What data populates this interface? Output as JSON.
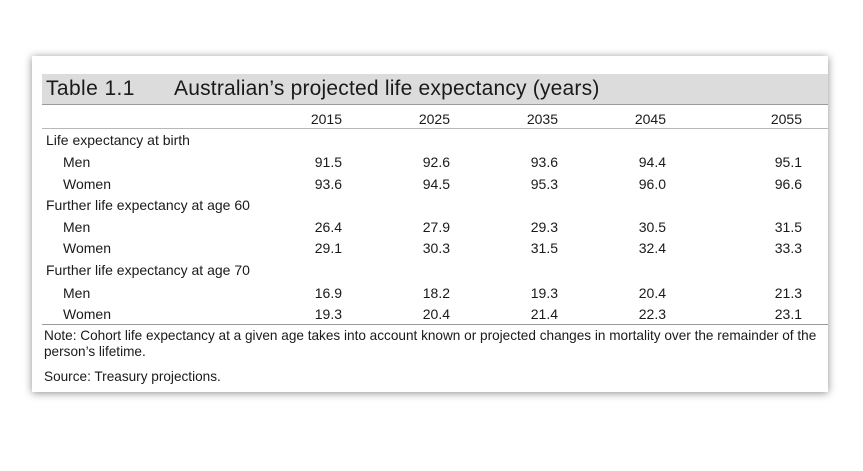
{
  "table": {
    "number": "Table 1.1",
    "title": "Australian’s projected life expectancy (years)",
    "years": [
      "2015",
      "2025",
      "2035",
      "2045",
      "2055"
    ],
    "sections": [
      {
        "heading": "Life expectancy at birth",
        "rows": [
          {
            "label": "Men",
            "values": [
              "91.5",
              "92.6",
              "93.6",
              "94.4",
              "95.1"
            ]
          },
          {
            "label": "Women",
            "values": [
              "93.6",
              "94.5",
              "95.3",
              "96.0",
              "96.6"
            ]
          }
        ]
      },
      {
        "heading": "Further life expectancy at age 60",
        "rows": [
          {
            "label": "Men",
            "values": [
              "26.4",
              "27.9",
              "29.3",
              "30.5",
              "31.5"
            ]
          },
          {
            "label": "Women",
            "values": [
              "29.1",
              "30.3",
              "31.5",
              "32.4",
              "33.3"
            ]
          }
        ]
      },
      {
        "heading": "Further life expectancy at age 70",
        "rows": [
          {
            "label": "Men",
            "values": [
              "16.9",
              "18.2",
              "19.3",
              "20.4",
              "21.3"
            ]
          },
          {
            "label": "Women",
            "values": [
              "19.3",
              "20.4",
              "21.4",
              "22.3",
              "23.1"
            ]
          }
        ]
      }
    ],
    "note": "Note: Cohort life expectancy at a given age takes into account known or projected changes in mortality over the remainder of the person’s lifetime.",
    "source": "Source: Treasury projections."
  },
  "colors": {
    "title_bar": "#dcdcdc",
    "text": "#1a1a1a"
  }
}
